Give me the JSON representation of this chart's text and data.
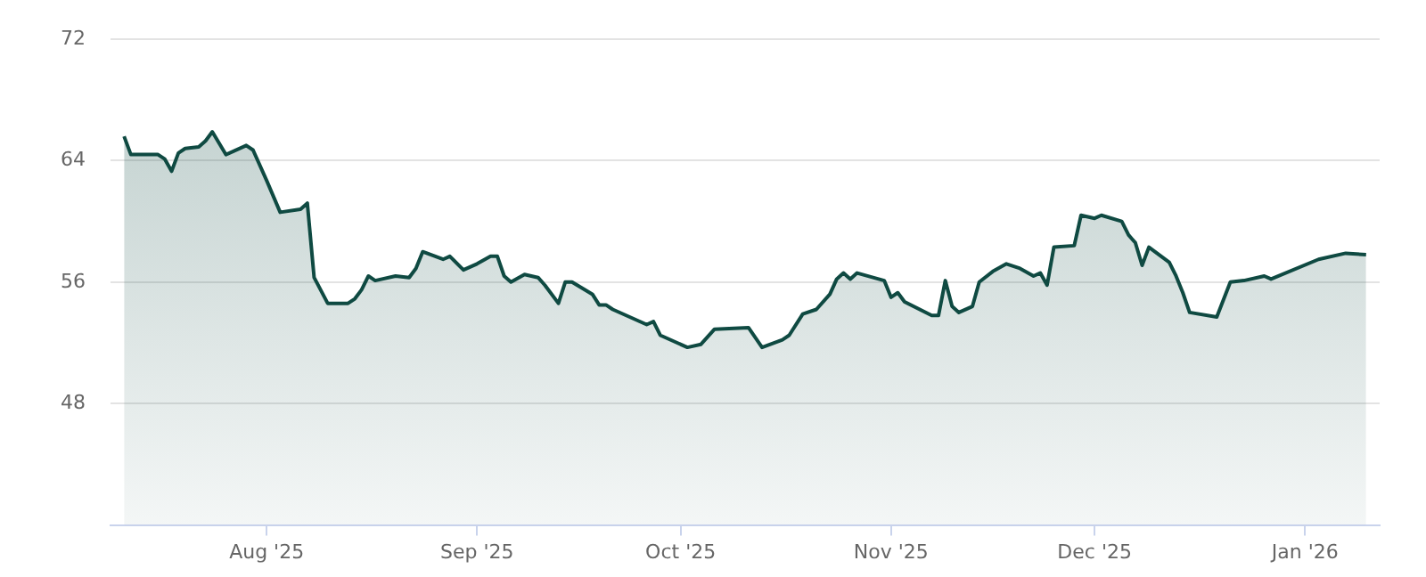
{
  "chart_data": {
    "type": "area",
    "xlim": [
      "2025-07-09",
      "2026-01-12"
    ],
    "xticks": [
      {
        "value": "2025-08-01",
        "label": "Aug '25"
      },
      {
        "value": "2025-09-01",
        "label": "Sep '25"
      },
      {
        "value": "2025-10-01",
        "label": "Oct '25"
      },
      {
        "value": "2025-11-01",
        "label": "Nov '25"
      },
      {
        "value": "2025-12-01",
        "label": "Dec '25"
      },
      {
        "value": "2026-01-01",
        "label": "Jan '26"
      }
    ],
    "ylim": [
      40,
      72
    ],
    "yticks": [
      48,
      56,
      64,
      72
    ],
    "grid": "y",
    "legend": false,
    "marker": "none",
    "line_style": "solid",
    "x": [
      "2025-07-11",
      "2025-07-12",
      "2025-07-16",
      "2025-07-17",
      "2025-07-18",
      "2025-07-19",
      "2025-07-20",
      "2025-07-22",
      "2025-07-23",
      "2025-07-24",
      "2025-07-26",
      "2025-07-29",
      "2025-07-30",
      "2025-08-01",
      "2025-08-03",
      "2025-08-06",
      "2025-08-07",
      "2025-08-08",
      "2025-08-10",
      "2025-08-13",
      "2025-08-14",
      "2025-08-15",
      "2025-08-16",
      "2025-08-17",
      "2025-08-20",
      "2025-08-22",
      "2025-08-23",
      "2025-08-24",
      "2025-08-27",
      "2025-08-28",
      "2025-08-30",
      "2025-09-01",
      "2025-09-03",
      "2025-09-04",
      "2025-09-05",
      "2025-09-06",
      "2025-09-08",
      "2025-09-10",
      "2025-09-11",
      "2025-09-13",
      "2025-09-14",
      "2025-09-15",
      "2025-09-18",
      "2025-09-19",
      "2025-09-20",
      "2025-09-21",
      "2025-09-26",
      "2025-09-27",
      "2025-09-28",
      "2025-10-02",
      "2025-10-04",
      "2025-10-06",
      "2025-10-11",
      "2025-10-13",
      "2025-10-16",
      "2025-10-17",
      "2025-10-19",
      "2025-10-21",
      "2025-10-23",
      "2025-10-24",
      "2025-10-25",
      "2025-10-26",
      "2025-10-27",
      "2025-10-31",
      "2025-11-01",
      "2025-11-02",
      "2025-11-03",
      "2025-11-07",
      "2025-11-08",
      "2025-11-09",
      "2025-11-10",
      "2025-11-11",
      "2025-11-13",
      "2025-11-14",
      "2025-11-16",
      "2025-11-18",
      "2025-11-20",
      "2025-11-22",
      "2025-11-23",
      "2025-11-24",
      "2025-11-25",
      "2025-11-28",
      "2025-11-29",
      "2025-12-01",
      "2025-12-02",
      "2025-12-05",
      "2025-12-06",
      "2025-12-07",
      "2025-12-08",
      "2025-12-09",
      "2025-12-12",
      "2025-12-13",
      "2025-12-14",
      "2025-12-15",
      "2025-12-19",
      "2025-12-21",
      "2025-12-23",
      "2025-12-26",
      "2025-12-27",
      "2026-01-03",
      "2026-01-07",
      "2026-01-10"
    ],
    "series": [
      {
        "color": "#0f4a42",
        "values": [
          65.6,
          64.4,
          64.4,
          64.1,
          63.3,
          64.5,
          64.8,
          64.9,
          65.3,
          65.9,
          64.4,
          65.0,
          64.7,
          62.7,
          60.6,
          60.8,
          61.2,
          56.3,
          54.6,
          54.6,
          54.9,
          55.5,
          56.4,
          56.1,
          56.4,
          56.3,
          56.9,
          58.0,
          57.5,
          57.7,
          56.8,
          57.2,
          57.7,
          57.7,
          56.4,
          56.0,
          56.5,
          56.3,
          55.8,
          54.6,
          56.0,
          56.0,
          55.2,
          54.5,
          54.5,
          54.2,
          53.2,
          53.4,
          52.5,
          51.7,
          51.9,
          52.9,
          53.0,
          51.7,
          52.2,
          52.5,
          53.9,
          54.2,
          55.2,
          56.2,
          56.6,
          56.2,
          56.6,
          56.1,
          55.0,
          55.3,
          54.7,
          53.8,
          53.8,
          56.1,
          54.4,
          54.0,
          54.4,
          56.0,
          56.7,
          57.2,
          56.9,
          56.4,
          56.6,
          55.8,
          58.3,
          58.4,
          60.4,
          60.2,
          60.4,
          60.0,
          59.1,
          58.6,
          57.1,
          58.3,
          57.3,
          56.4,
          55.3,
          54.0,
          53.7,
          56.0,
          56.1,
          56.4,
          56.2,
          57.5,
          57.9,
          57.8
        ]
      }
    ]
  }
}
